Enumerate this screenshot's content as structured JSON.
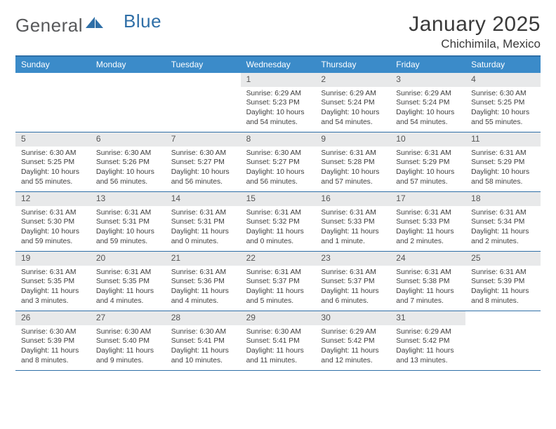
{
  "brand": {
    "part1": "General",
    "part2": "Blue"
  },
  "title": "January 2025",
  "subtitle": "Chichimila, Mexico",
  "colors": {
    "header_bar": "#3b8bc9",
    "accent_line": "#2f6fa7",
    "daynum_bg": "#e8e9ea",
    "text": "#3a3a3a",
    "logo_gray": "#58595b",
    "logo_blue": "#2f6fa7",
    "background": "#ffffff"
  },
  "typography": {
    "title_fontsize_pt": 22,
    "subtitle_fontsize_pt": 13,
    "weekday_fontsize_pt": 9,
    "cell_fontsize_pt": 8
  },
  "weekdays": [
    "Sunday",
    "Monday",
    "Tuesday",
    "Wednesday",
    "Thursday",
    "Friday",
    "Saturday"
  ],
  "weeks": [
    [
      {
        "day": "",
        "sunrise": "",
        "sunset": "",
        "daylight": ""
      },
      {
        "day": "",
        "sunrise": "",
        "sunset": "",
        "daylight": ""
      },
      {
        "day": "",
        "sunrise": "",
        "sunset": "",
        "daylight": ""
      },
      {
        "day": "1",
        "sunrise": "Sunrise: 6:29 AM",
        "sunset": "Sunset: 5:23 PM",
        "daylight": "Daylight: 10 hours and 54 minutes."
      },
      {
        "day": "2",
        "sunrise": "Sunrise: 6:29 AM",
        "sunset": "Sunset: 5:24 PM",
        "daylight": "Daylight: 10 hours and 54 minutes."
      },
      {
        "day": "3",
        "sunrise": "Sunrise: 6:29 AM",
        "sunset": "Sunset: 5:24 PM",
        "daylight": "Daylight: 10 hours and 54 minutes."
      },
      {
        "day": "4",
        "sunrise": "Sunrise: 6:30 AM",
        "sunset": "Sunset: 5:25 PM",
        "daylight": "Daylight: 10 hours and 55 minutes."
      }
    ],
    [
      {
        "day": "5",
        "sunrise": "Sunrise: 6:30 AM",
        "sunset": "Sunset: 5:25 PM",
        "daylight": "Daylight: 10 hours and 55 minutes."
      },
      {
        "day": "6",
        "sunrise": "Sunrise: 6:30 AM",
        "sunset": "Sunset: 5:26 PM",
        "daylight": "Daylight: 10 hours and 56 minutes."
      },
      {
        "day": "7",
        "sunrise": "Sunrise: 6:30 AM",
        "sunset": "Sunset: 5:27 PM",
        "daylight": "Daylight: 10 hours and 56 minutes."
      },
      {
        "day": "8",
        "sunrise": "Sunrise: 6:30 AM",
        "sunset": "Sunset: 5:27 PM",
        "daylight": "Daylight: 10 hours and 56 minutes."
      },
      {
        "day": "9",
        "sunrise": "Sunrise: 6:31 AM",
        "sunset": "Sunset: 5:28 PM",
        "daylight": "Daylight: 10 hours and 57 minutes."
      },
      {
        "day": "10",
        "sunrise": "Sunrise: 6:31 AM",
        "sunset": "Sunset: 5:29 PM",
        "daylight": "Daylight: 10 hours and 57 minutes."
      },
      {
        "day": "11",
        "sunrise": "Sunrise: 6:31 AM",
        "sunset": "Sunset: 5:29 PM",
        "daylight": "Daylight: 10 hours and 58 minutes."
      }
    ],
    [
      {
        "day": "12",
        "sunrise": "Sunrise: 6:31 AM",
        "sunset": "Sunset: 5:30 PM",
        "daylight": "Daylight: 10 hours and 59 minutes."
      },
      {
        "day": "13",
        "sunrise": "Sunrise: 6:31 AM",
        "sunset": "Sunset: 5:31 PM",
        "daylight": "Daylight: 10 hours and 59 minutes."
      },
      {
        "day": "14",
        "sunrise": "Sunrise: 6:31 AM",
        "sunset": "Sunset: 5:31 PM",
        "daylight": "Daylight: 11 hours and 0 minutes."
      },
      {
        "day": "15",
        "sunrise": "Sunrise: 6:31 AM",
        "sunset": "Sunset: 5:32 PM",
        "daylight": "Daylight: 11 hours and 0 minutes."
      },
      {
        "day": "16",
        "sunrise": "Sunrise: 6:31 AM",
        "sunset": "Sunset: 5:33 PM",
        "daylight": "Daylight: 11 hours and 1 minute."
      },
      {
        "day": "17",
        "sunrise": "Sunrise: 6:31 AM",
        "sunset": "Sunset: 5:33 PM",
        "daylight": "Daylight: 11 hours and 2 minutes."
      },
      {
        "day": "18",
        "sunrise": "Sunrise: 6:31 AM",
        "sunset": "Sunset: 5:34 PM",
        "daylight": "Daylight: 11 hours and 2 minutes."
      }
    ],
    [
      {
        "day": "19",
        "sunrise": "Sunrise: 6:31 AM",
        "sunset": "Sunset: 5:35 PM",
        "daylight": "Daylight: 11 hours and 3 minutes."
      },
      {
        "day": "20",
        "sunrise": "Sunrise: 6:31 AM",
        "sunset": "Sunset: 5:35 PM",
        "daylight": "Daylight: 11 hours and 4 minutes."
      },
      {
        "day": "21",
        "sunrise": "Sunrise: 6:31 AM",
        "sunset": "Sunset: 5:36 PM",
        "daylight": "Daylight: 11 hours and 4 minutes."
      },
      {
        "day": "22",
        "sunrise": "Sunrise: 6:31 AM",
        "sunset": "Sunset: 5:37 PM",
        "daylight": "Daylight: 11 hours and 5 minutes."
      },
      {
        "day": "23",
        "sunrise": "Sunrise: 6:31 AM",
        "sunset": "Sunset: 5:37 PM",
        "daylight": "Daylight: 11 hours and 6 minutes."
      },
      {
        "day": "24",
        "sunrise": "Sunrise: 6:31 AM",
        "sunset": "Sunset: 5:38 PM",
        "daylight": "Daylight: 11 hours and 7 minutes."
      },
      {
        "day": "25",
        "sunrise": "Sunrise: 6:31 AM",
        "sunset": "Sunset: 5:39 PM",
        "daylight": "Daylight: 11 hours and 8 minutes."
      }
    ],
    [
      {
        "day": "26",
        "sunrise": "Sunrise: 6:30 AM",
        "sunset": "Sunset: 5:39 PM",
        "daylight": "Daylight: 11 hours and 8 minutes."
      },
      {
        "day": "27",
        "sunrise": "Sunrise: 6:30 AM",
        "sunset": "Sunset: 5:40 PM",
        "daylight": "Daylight: 11 hours and 9 minutes."
      },
      {
        "day": "28",
        "sunrise": "Sunrise: 6:30 AM",
        "sunset": "Sunset: 5:41 PM",
        "daylight": "Daylight: 11 hours and 10 minutes."
      },
      {
        "day": "29",
        "sunrise": "Sunrise: 6:30 AM",
        "sunset": "Sunset: 5:41 PM",
        "daylight": "Daylight: 11 hours and 11 minutes."
      },
      {
        "day": "30",
        "sunrise": "Sunrise: 6:29 AM",
        "sunset": "Sunset: 5:42 PM",
        "daylight": "Daylight: 11 hours and 12 minutes."
      },
      {
        "day": "31",
        "sunrise": "Sunrise: 6:29 AM",
        "sunset": "Sunset: 5:42 PM",
        "daylight": "Daylight: 11 hours and 13 minutes."
      },
      {
        "day": "",
        "sunrise": "",
        "sunset": "",
        "daylight": ""
      }
    ]
  ]
}
